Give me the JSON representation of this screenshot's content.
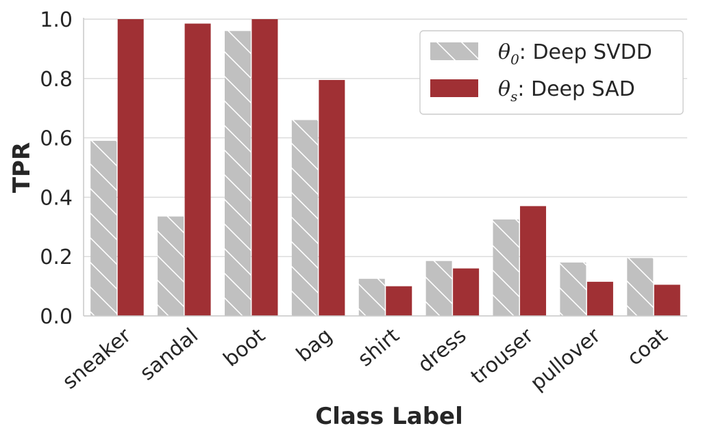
{
  "chart_data": {
    "type": "bar",
    "categories": [
      "sneaker",
      "sandal",
      "boot",
      "bag",
      "shirt",
      "dress",
      "trouser",
      "pullover",
      "coat"
    ],
    "series": [
      {
        "name": "θ0: Deep SVDD",
        "legend_symbol": "θ",
        "legend_subscript": "0",
        "legend_text": ": Deep SVDD",
        "color": "#c0c0c0",
        "hatch": "diagonal",
        "values": [
          0.59,
          0.335,
          0.96,
          0.66,
          0.125,
          0.185,
          0.325,
          0.18,
          0.195
        ]
      },
      {
        "name": "θs: Deep SAD",
        "legend_symbol": "θ",
        "legend_subscript": "s",
        "legend_text": ": Deep SAD",
        "color": "#a03034",
        "hatch": "none",
        "values": [
          1.0,
          0.985,
          1.0,
          0.795,
          0.1,
          0.16,
          0.37,
          0.115,
          0.105
        ]
      }
    ],
    "xlabel": "Class Label",
    "ylabel": "TPR",
    "ylim": [
      0,
      1.0
    ],
    "yticks": [
      "0.0",
      "0.2",
      "0.4",
      "0.6",
      "0.8",
      "1.0"
    ],
    "grid": "horizontal",
    "legend_position": "top-right"
  }
}
